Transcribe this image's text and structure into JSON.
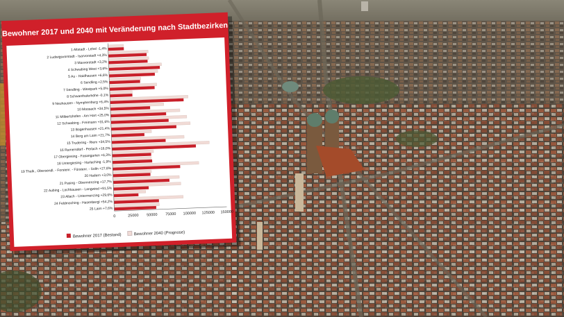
{
  "chart_data": {
    "type": "bar",
    "title": "Bewohner 2017 und 2040 mit Veränderung nach Stadtbezirken",
    "categories": [
      "1 Altstadt - Lehel",
      "2 Ludwigsvorstadt - Isarvorstadt",
      "3 Maxvorstadt",
      "4 Schwabing West",
      "5 Au - Haidhausen",
      "6 Sendling",
      "7 Sendling - Westpark",
      "8 Schwanthalerhöhe",
      "9 Neuhausen - Nymphenburg",
      "10 Moosach",
      "11 Milbertshofen - Am Hart",
      "12 Schwabing - Freimann",
      "13 Bogenhausen",
      "14 Berg am Laim",
      "15 Trudering - Riem",
      "16 Ramersdorf - Perlach",
      "17 Obergiesing - Fasangarten",
      "18 Untergiesing - Harlaching",
      "19 Thalk., Obersendl. - Forstenr. - Fürstenr. - Solln",
      "20 Hadern",
      "21 Pasing - Obermenzing",
      "22 Aubing - Lochhausen - Langwied",
      "23 Allach - Untermenzing",
      "24 Feldmoching - Hasenbergl",
      "25 Laim"
    ],
    "changes": [
      "-1,4%",
      "+4,3%",
      "+3,2%",
      "+3,6%",
      "+6,6%",
      "+2,5%",
      "+5,0%",
      "-0,1%",
      "+6,4%",
      "+34,5%",
      "+25,0%",
      "+31,6%",
      "+21,4%",
      "+21,7%",
      "+34,5%",
      "+16,0%",
      "+6,3%",
      "-1,9%",
      "+27,8%",
      "+3,0%",
      "+17,7%",
      "+91,5%",
      "+29,6%",
      "+54,2%",
      "+7,6%"
    ],
    "series": [
      {
        "name": "Bewohner 2017 (Bestand)",
        "color": "#c8202a",
        "values": [
          21000,
          51000,
          52000,
          68000,
          61000,
          41000,
          60000,
          30000,
          98000,
          53000,
          74000,
          77000,
          87000,
          44000,
          72000,
          112000,
          52000,
          53000,
          90000,
          50000,
          75000,
          47000,
          33000,
          60000,
          56000
        ]
      },
      {
        "name": "Bewohner 2040 (Prognose)",
        "color": "#f1dbd6",
        "values": [
          20700,
          53200,
          53700,
          70400,
          65000,
          42000,
          63000,
          30000,
          104000,
          71300,
          92500,
          101300,
          105600,
          53600,
          96800,
          130000,
          55300,
          52000,
          115000,
          51500,
          88300,
          90000,
          42800,
          92500,
          60300
        ]
      }
    ],
    "xticks": [
      "0",
      "25000",
      "50000",
      "75000",
      "100000",
      "125000",
      "150000"
    ],
    "xlim": [
      0,
      150000
    ],
    "legend": "bottom",
    "grid": false
  }
}
